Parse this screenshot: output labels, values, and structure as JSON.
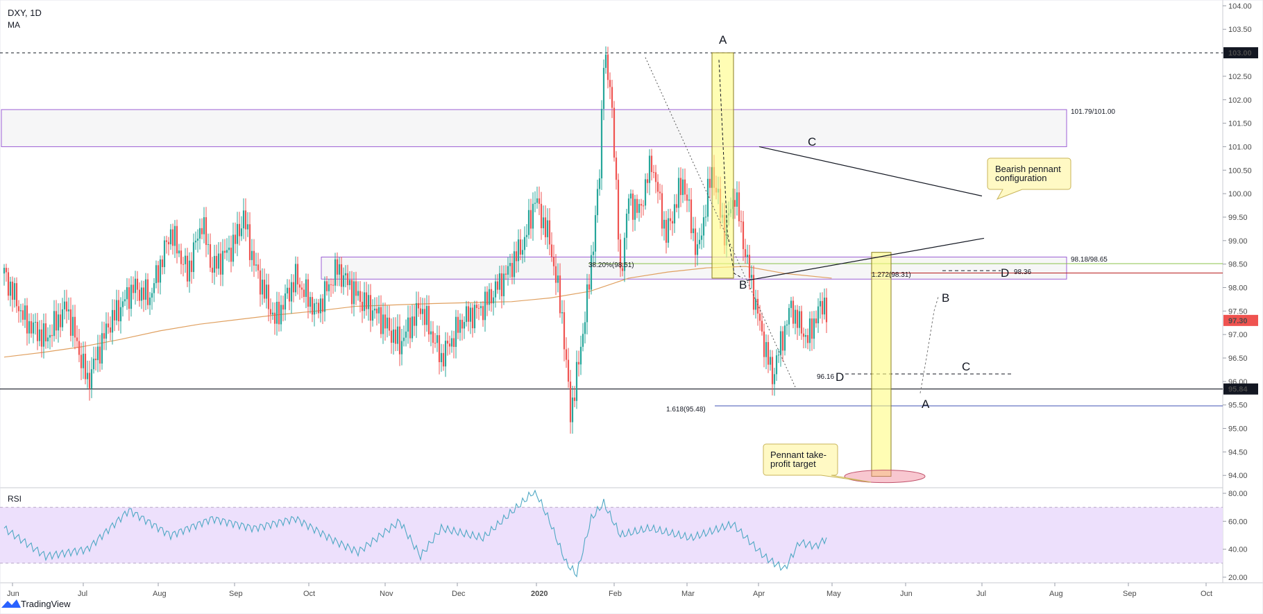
{
  "header": {
    "symbol": "DXY, 1D",
    "indicator": "MA"
  },
  "rsi_label": "RSI",
  "footer": {
    "logo_text": "TradingView"
  },
  "colors": {
    "up": "#26a69a",
    "down": "#ef5350",
    "ma": "#e0a060",
    "rsi": "#4fa8c4",
    "rsi_band": "#ede0fc",
    "zone_border": "#9c5fd4",
    "callout_fill": "#fff9c4",
    "callout_border": "#c8b45a",
    "fib_green": "#8bc34a",
    "fib_red": "#b71c1c",
    "fib_blue": "#3f51b5"
  },
  "chart_data": {
    "type": "candlestick",
    "price_axis": {
      "ticks": [
        "104.00",
        "103.50",
        "103.00",
        "102.50",
        "102.00",
        "101.50",
        "101.00",
        "100.50",
        "100.00",
        "99.50",
        "99.00",
        "98.50",
        "98.00",
        "97.50",
        "97.00",
        "96.50",
        "96.00",
        "95.50",
        "95.00",
        "94.50",
        "94.00"
      ],
      "range": [
        93.9,
        104.05
      ],
      "highlighted": [
        {
          "label": "103.00",
          "value": 103.0
        },
        {
          "label": "97.30",
          "value": 97.3,
          "style": "last-price"
        },
        {
          "label": "95.84",
          "value": 95.84
        }
      ]
    },
    "time_axis": {
      "labels": [
        "Jun",
        "Jul",
        "Aug",
        "Sep",
        "Oct",
        "Nov",
        "Dec",
        "2020",
        "Feb",
        "Mar",
        "Apr",
        "May",
        "Jun",
        "Jul",
        "Aug",
        "Sep",
        "Oct"
      ]
    },
    "zones": [
      {
        "label": "101.79/101.00",
        "top": 101.79,
        "bottom": 101.0
      },
      {
        "label": "98.18/98.65",
        "top": 98.65,
        "bottom": 98.18
      }
    ],
    "levels": [
      {
        "label": "38.20%(98.51)",
        "value": 98.51
      },
      {
        "label": "1.272(98.31)",
        "value": 98.31
      },
      {
        "label": "1.618(95.48)",
        "value": 95.48
      },
      {
        "label": "98.36",
        "value": 98.36
      },
      {
        "label": "96.16",
        "value": 96.16
      }
    ],
    "wave_labels": [
      "A",
      "B",
      "C",
      "D",
      "A",
      "B",
      "C",
      "D"
    ],
    "annotations": [
      "Bearish pennant configuration",
      "Pennant take-profit target"
    ],
    "rsi_axis": {
      "ticks": [
        "80.00",
        "60.00",
        "40.00",
        "20.00"
      ],
      "range": [
        17,
        83
      ],
      "bands": [
        70,
        30
      ]
    },
    "ma_path": [
      [
        0,
        96.52
      ],
      [
        15,
        96.62
      ],
      [
        30,
        96.74
      ],
      [
        45,
        96.9
      ],
      [
        60,
        97.08
      ],
      [
        75,
        97.22
      ],
      [
        90,
        97.32
      ],
      [
        105,
        97.42
      ],
      [
        120,
        97.5
      ],
      [
        135,
        97.6
      ],
      [
        150,
        97.63
      ],
      [
        165,
        97.66
      ],
      [
        180,
        97.68
      ],
      [
        195,
        97.7
      ],
      [
        210,
        97.78
      ],
      [
        225,
        97.92
      ],
      [
        240,
        98.2
      ],
      [
        255,
        98.33
      ],
      [
        270,
        98.42
      ],
      [
        285,
        98.45
      ],
      [
        300,
        98.3
      ],
      [
        318,
        98.2
      ]
    ],
    "candle_anchors": [
      [
        0,
        98.3
      ],
      [
        10,
        97.3
      ],
      [
        20,
        96.9
      ],
      [
        30,
        97.6
      ],
      [
        40,
        96.0
      ],
      [
        50,
        97.2
      ],
      [
        62,
        98.0
      ],
      [
        70,
        97.8
      ],
      [
        80,
        99.2
      ],
      [
        88,
        98.3
      ],
      [
        95,
        99.4
      ],
      [
        100,
        98.4
      ],
      [
        110,
        98.9
      ],
      [
        115,
        99.5
      ],
      [
        120,
        98.5
      ],
      [
        130,
        97.3
      ],
      [
        140,
        98.2
      ],
      [
        150,
        97.5
      ],
      [
        160,
        98.4
      ],
      [
        170,
        97.8
      ],
      [
        180,
        97.4
      ],
      [
        190,
        96.8
      ],
      [
        200,
        97.6
      ],
      [
        210,
        96.5
      ],
      [
        220,
        97.3
      ],
      [
        230,
        97.6
      ],
      [
        240,
        98.2
      ],
      [
        250,
        99.0
      ],
      [
        255,
        99.9
      ],
      [
        262,
        99.0
      ],
      [
        268,
        97.4
      ],
      [
        272,
        95.3
      ],
      [
        276,
        96.4
      ],
      [
        281,
        98.1
      ],
      [
        286,
        100.4
      ],
      [
        288,
        103.0
      ],
      [
        292,
        101.9
      ],
      [
        296,
        98.2
      ],
      [
        300,
        99.9
      ],
      [
        305,
        99.6
      ],
      [
        311,
        100.7
      ],
      [
        318,
        99.1
      ],
      [
        326,
        100.3
      ],
      [
        333,
        98.7
      ],
      [
        340,
        100.5
      ],
      [
        346,
        99.2
      ],
      [
        351,
        100.0
      ],
      [
        357,
        98.5
      ],
      [
        364,
        97.0
      ],
      [
        369,
        96.1
      ],
      [
        373,
        96.8
      ],
      [
        378,
        97.6
      ],
      [
        382,
        97.2
      ],
      [
        386,
        96.9
      ],
      [
        390,
        97.4
      ],
      [
        394,
        97.7
      ],
      [
        396,
        97.3
      ]
    ],
    "rsi_anchors": [
      [
        0,
        55
      ],
      [
        20,
        35
      ],
      [
        40,
        40
      ],
      [
        60,
        68
      ],
      [
        80,
        50
      ],
      [
        100,
        62
      ],
      [
        120,
        55
      ],
      [
        140,
        62
      ],
      [
        160,
        45
      ],
      [
        170,
        38
      ],
      [
        190,
        60
      ],
      [
        200,
        35
      ],
      [
        210,
        55
      ],
      [
        230,
        48
      ],
      [
        250,
        75
      ],
      [
        255,
        82
      ],
      [
        262,
        60
      ],
      [
        270,
        30
      ],
      [
        275,
        22
      ],
      [
        282,
        62
      ],
      [
        288,
        73
      ],
      [
        296,
        50
      ],
      [
        310,
        55
      ],
      [
        330,
        48
      ],
      [
        350,
        58
      ],
      [
        365,
        35
      ],
      [
        370,
        30
      ],
      [
        375,
        26
      ],
      [
        382,
        45
      ],
      [
        390,
        42
      ],
      [
        395,
        48
      ],
      [
        396,
        47
      ]
    ]
  }
}
